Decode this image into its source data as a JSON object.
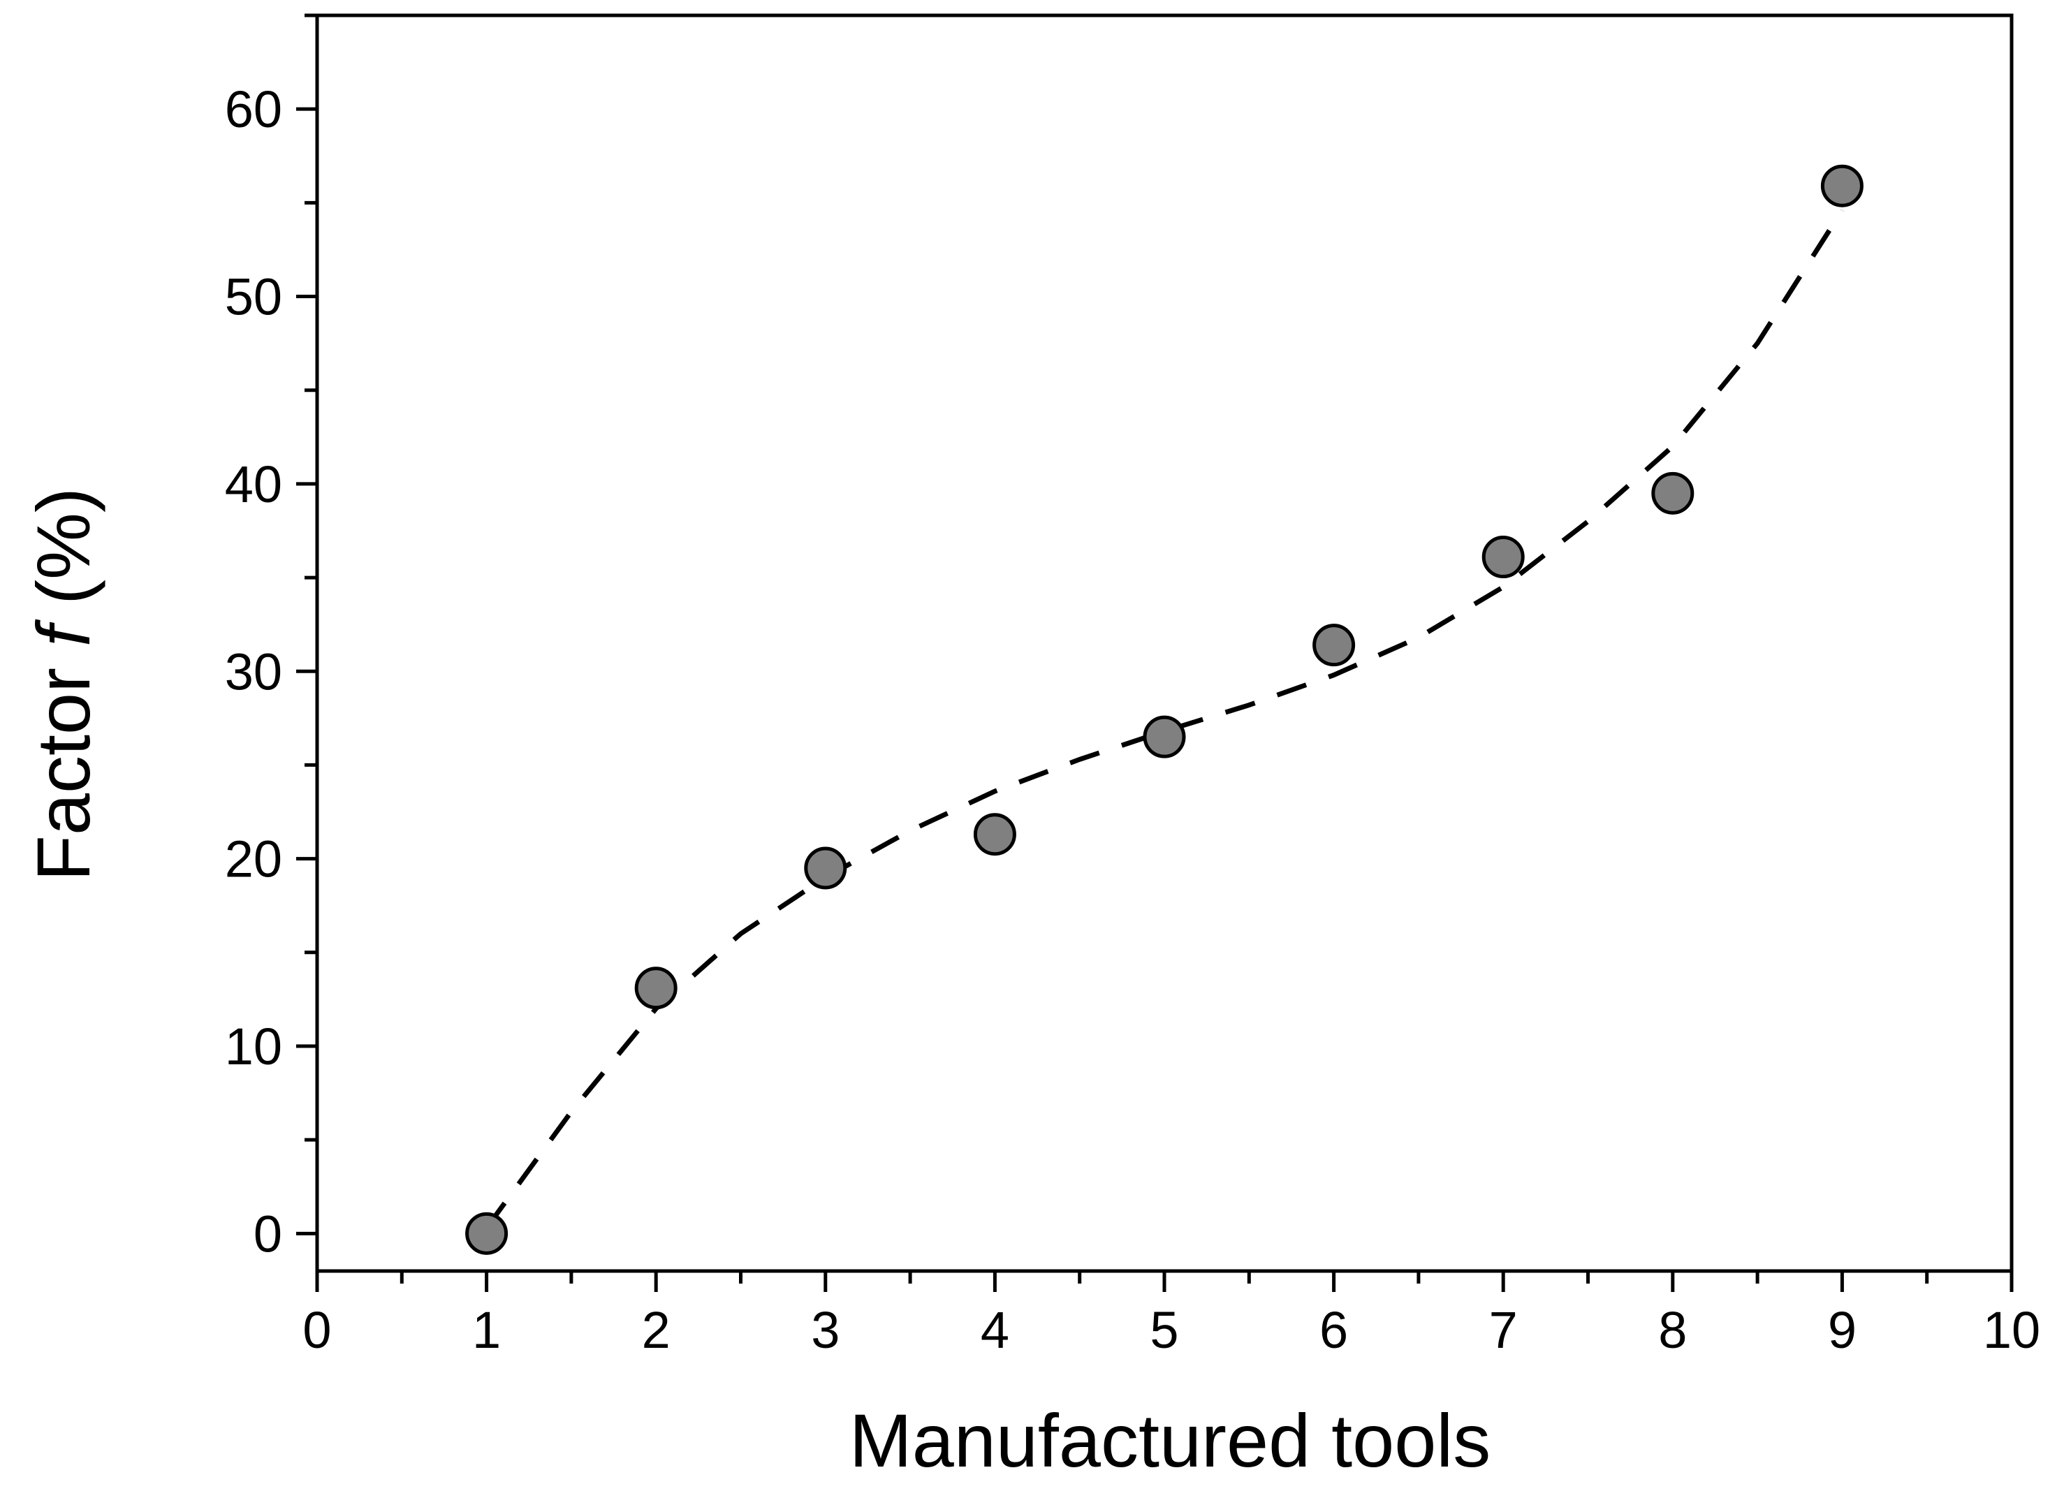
{
  "chart_data": {
    "type": "scatter",
    "xlabel": "Manufactured tools",
    "ylabel_prefix": "Factor ",
    "ylabel_var": "f",
    "ylabel_suffix": " (%)",
    "xlim": [
      0,
      10
    ],
    "ylim": [
      -2,
      65
    ],
    "x_ticks": [
      0,
      1,
      2,
      3,
      4,
      5,
      6,
      7,
      8,
      9,
      10
    ],
    "y_ticks": [
      0,
      10,
      20,
      30,
      40,
      50,
      60
    ],
    "x_tick_labels": [
      "0",
      "1",
      "2",
      "3",
      "4",
      "5",
      "6",
      "7",
      "8",
      "9",
      "10"
    ],
    "y_tick_labels": [
      "0",
      "10",
      "20",
      "30",
      "40",
      "50",
      "60"
    ],
    "x_minor_step": 0.5,
    "y_minor_step": 5,
    "grid": false,
    "legend": "none",
    "series": [
      {
        "marker": "circle",
        "color": "#808080",
        "edge_color": "#000000",
        "x": [
          1,
          2,
          3,
          4,
          5,
          6,
          7,
          8,
          9
        ],
        "y": [
          0.0,
          13.1,
          19.5,
          21.3,
          26.5,
          31.4,
          36.1,
          39.5,
          55.9
        ]
      }
    ],
    "fit": {
      "style": "dashed",
      "color": "#000000",
      "x": [
        1,
        1.5,
        2,
        2.5,
        3,
        3.5,
        4,
        4.5,
        5,
        5.5,
        6,
        6.5,
        7,
        7.5,
        8,
        8.5,
        9
      ],
      "y": [
        0.3,
        6.5,
        12.0,
        16.0,
        19.0,
        21.5,
        23.6,
        25.3,
        26.8,
        28.2,
        29.8,
        31.8,
        34.5,
        38.0,
        42.0,
        47.5,
        54.6
      ]
    }
  }
}
